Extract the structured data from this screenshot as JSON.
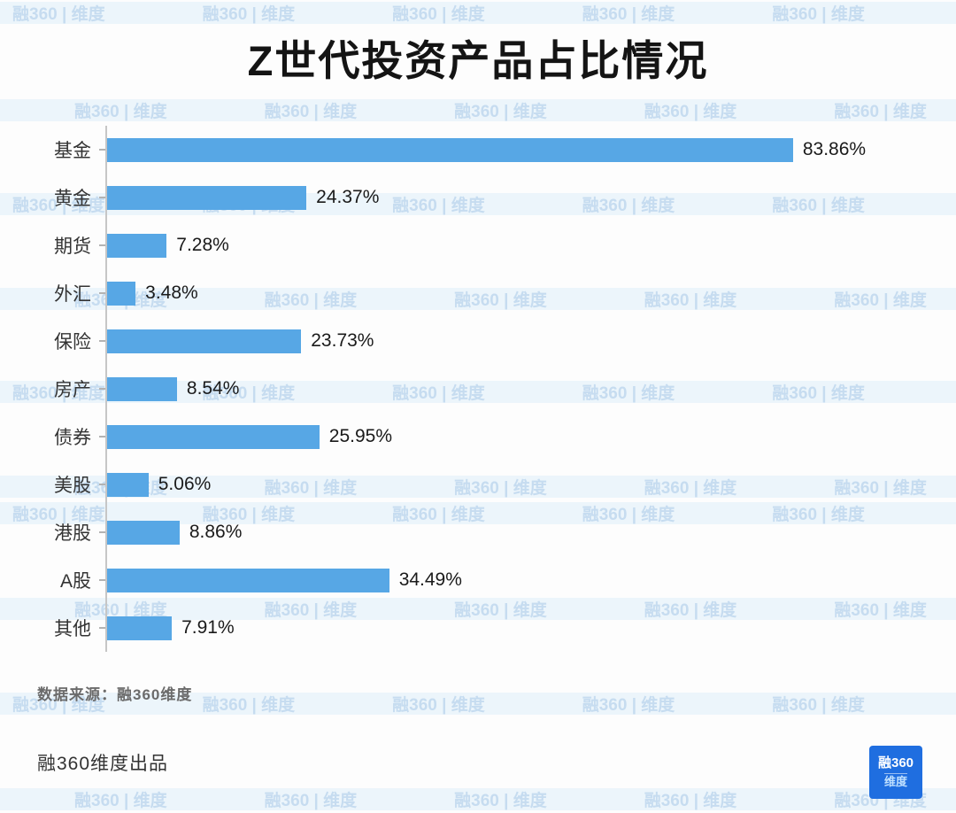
{
  "title": "Z世代投资产品占比情况",
  "watermark_text": "融360 | 维度",
  "source_note": "数据来源：融360维度",
  "producer": "融360维度出品",
  "logo": {
    "line1": "融360",
    "line2": "维度"
  },
  "colors": {
    "bar": "#57A7E5",
    "band": "#DFEEFA",
    "logo": "#1F6EE0",
    "title": "#141414"
  },
  "chart_data": {
    "type": "bar",
    "orientation": "horizontal",
    "title": "Z世代投资产品占比情况",
    "categories": [
      "基金",
      "黄金",
      "期货",
      "外汇",
      "保险",
      "房产",
      "债券",
      "美股",
      "港股",
      "A股",
      "其他"
    ],
    "values": [
      83.86,
      24.37,
      7.28,
      3.48,
      23.73,
      8.54,
      25.95,
      5.06,
      8.86,
      34.49,
      7.91
    ],
    "value_labels": [
      "83.86%",
      "24.37%",
      "7.28%",
      "3.48%",
      "23.73%",
      "8.54%",
      "25.95%",
      "5.06%",
      "8.86%",
      "34.49%",
      "7.91%"
    ],
    "unit": "%",
    "xlim": [
      0,
      100
    ],
    "grid": false,
    "legend": "none",
    "bar_color": "#57A7E5"
  }
}
